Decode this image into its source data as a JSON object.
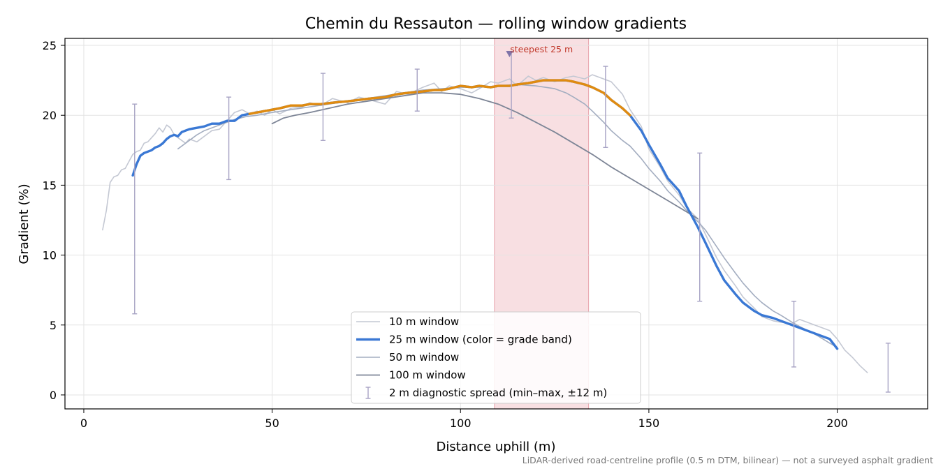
{
  "chart_data": {
    "type": "line",
    "title": "Chemin du Ressauton — rolling window gradients",
    "xlabel": "Distance uphill (m)",
    "ylabel": "Gradient (%)",
    "xlim": [
      -5,
      224
    ],
    "ylim": [
      -1,
      25.5
    ],
    "x_ticks": [
      0,
      50,
      100,
      150,
      200
    ],
    "y_ticks": [
      0,
      5,
      10,
      15,
      20,
      25
    ],
    "grid": true,
    "legend_position": "lower-center",
    "footnote": "LiDAR-derived road-centreline profile (0.5 m DTM, bilinear) — not a surveyed asphalt gradient",
    "highlight": {
      "label": "steepest 25 m",
      "x_start": 109,
      "x_end": 134,
      "marker_x": 113,
      "marker_y": 24.5,
      "color": "#f2c4ca"
    },
    "series": [
      {
        "name": "10 m window",
        "color": "#c4c8d3",
        "x": [
          5,
          6,
          7,
          8,
          9,
          10,
          11,
          12,
          13,
          14,
          15,
          16,
          17,
          18,
          19,
          20,
          21,
          22,
          23,
          24,
          25,
          26,
          27,
          28,
          30,
          32,
          34,
          36,
          38,
          40,
          42,
          44,
          46,
          48,
          50,
          52,
          55,
          58,
          60,
          63,
          66,
          70,
          73,
          76,
          80,
          83,
          86,
          90,
          93,
          95,
          97,
          100,
          103,
          105,
          108,
          110,
          113,
          115,
          118,
          120,
          122,
          125,
          128,
          130,
          133,
          135,
          138,
          140,
          143,
          145,
          148,
          150,
          153,
          155,
          158,
          160,
          163,
          165,
          168,
          170,
          173,
          175,
          178,
          180,
          183,
          185,
          188,
          190,
          192,
          195,
          198,
          200,
          202,
          204,
          206,
          208
        ],
        "y": [
          11.8,
          13.2,
          15.2,
          15.6,
          15.7,
          16.1,
          16.2,
          16.7,
          17.2,
          17.4,
          17.5,
          18.0,
          18.1,
          18.4,
          18.7,
          19.1,
          18.8,
          19.3,
          19.1,
          18.6,
          18.4,
          18.2,
          18.0,
          18.3,
          18.1,
          18.5,
          18.9,
          19.0,
          19.6,
          20.2,
          20.4,
          20.1,
          20.3,
          20.0,
          20.4,
          20.1,
          20.5,
          20.6,
          20.9,
          20.7,
          21.2,
          20.9,
          21.3,
          21.1,
          20.8,
          21.7,
          21.5,
          22.0,
          22.3,
          21.7,
          22.1,
          21.9,
          21.6,
          21.9,
          22.4,
          22.3,
          22.6,
          22.1,
          22.8,
          22.5,
          22.7,
          22.4,
          22.7,
          22.8,
          22.6,
          22.9,
          22.6,
          22.4,
          21.5,
          20.4,
          19.2,
          17.6,
          16.3,
          15.3,
          14.3,
          13.4,
          12.6,
          11.5,
          9.8,
          8.9,
          7.8,
          7.0,
          6.2,
          5.6,
          5.3,
          5.2,
          5.1,
          5.4,
          5.2,
          4.9,
          4.6,
          4.0,
          3.2,
          2.7,
          2.1,
          1.6
        ],
        "width": 1.6
      },
      {
        "name": "25 m window (color = grade band)",
        "color": "#3a78d4",
        "x": [
          13,
          14,
          15,
          16,
          17,
          18,
          19,
          20,
          21,
          22,
          23,
          24,
          25,
          26,
          27,
          28,
          30,
          32,
          34,
          36,
          38,
          40,
          42,
          44,
          46,
          48,
          50,
          52,
          55,
          58,
          60,
          63,
          66,
          70,
          73,
          76,
          80,
          83,
          86,
          90,
          93,
          95,
          97,
          100,
          103,
          105,
          108,
          110,
          113,
          115,
          118,
          120,
          122,
          125,
          128,
          130,
          133,
          135,
          138,
          140,
          143,
          145,
          148,
          150,
          153,
          155,
          158,
          160,
          163,
          165,
          168,
          170,
          173,
          175,
          178,
          180,
          183,
          185,
          188,
          190,
          192,
          195,
          198,
          200
        ],
        "y": [
          15.7,
          16.5,
          17.1,
          17.3,
          17.4,
          17.5,
          17.7,
          17.8,
          18.0,
          18.3,
          18.5,
          18.6,
          18.5,
          18.8,
          18.9,
          19.0,
          19.1,
          19.2,
          19.4,
          19.4,
          19.6,
          19.6,
          20.0,
          20.1,
          20.2,
          20.3,
          20.4,
          20.5,
          20.7,
          20.7,
          20.8,
          20.8,
          20.9,
          21.0,
          21.1,
          21.2,
          21.3,
          21.5,
          21.6,
          21.7,
          21.8,
          21.8,
          21.9,
          22.1,
          22.0,
          22.1,
          22.0,
          22.1,
          22.1,
          22.2,
          22.3,
          22.4,
          22.5,
          22.5,
          22.5,
          22.4,
          22.2,
          22.0,
          21.6,
          21.1,
          20.5,
          20.0,
          18.9,
          17.9,
          16.5,
          15.5,
          14.6,
          13.5,
          12.0,
          10.9,
          9.2,
          8.2,
          7.2,
          6.6,
          6.0,
          5.7,
          5.5,
          5.3,
          5.0,
          4.8,
          4.6,
          4.3,
          4.0,
          3.3
        ],
        "width": 3.4,
        "bands": [
          {
            "x_start": 43,
            "x_end": 145,
            "color": "#e08b10"
          }
        ]
      },
      {
        "name": "50 m window",
        "color": "#a3adc0",
        "x": [
          25,
          28,
          30,
          32,
          35,
          38,
          40,
          43,
          46,
          50,
          55,
          60,
          65,
          70,
          75,
          80,
          85,
          90,
          95,
          100,
          105,
          110,
          115,
          120,
          125,
          128,
          130,
          133,
          135,
          138,
          140,
          143,
          145,
          148,
          150,
          153,
          155,
          158,
          160,
          163,
          165,
          168,
          170,
          173,
          175,
          178,
          180,
          183,
          185,
          188,
          190,
          193,
          195,
          198,
          200
        ],
        "y": [
          17.6,
          18.2,
          18.6,
          18.9,
          19.2,
          19.5,
          19.7,
          19.9,
          20.0,
          20.2,
          20.4,
          20.6,
          20.8,
          21.0,
          21.2,
          21.4,
          21.6,
          21.8,
          21.9,
          22.0,
          22.0,
          22.1,
          22.2,
          22.1,
          21.9,
          21.6,
          21.3,
          20.8,
          20.3,
          19.5,
          18.9,
          18.2,
          17.8,
          16.9,
          16.2,
          15.3,
          14.6,
          13.8,
          13.2,
          12.4,
          11.8,
          10.6,
          9.8,
          8.7,
          8.0,
          7.1,
          6.6,
          6.0,
          5.7,
          5.2,
          4.9,
          4.5,
          4.2,
          3.7,
          3.4
        ],
        "width": 1.6
      },
      {
        "name": "100 m window",
        "color": "#7d8596",
        "x": [
          50,
          53,
          56,
          60,
          65,
          70,
          75,
          80,
          85,
          90,
          95,
          100,
          105,
          110,
          115,
          120,
          125,
          130,
          135,
          140,
          145,
          150,
          155,
          160,
          163
        ],
        "y": [
          19.4,
          19.8,
          20.0,
          20.2,
          20.5,
          20.8,
          21.0,
          21.2,
          21.4,
          21.6,
          21.6,
          21.5,
          21.2,
          20.8,
          20.2,
          19.5,
          18.8,
          18.0,
          17.2,
          16.3,
          15.5,
          14.7,
          13.9,
          13.1,
          12.6
        ],
        "width": 1.8
      }
    ],
    "diagnostic_spread": {
      "name": "2 m diagnostic spread (min–max, ±12 m)",
      "color": "#a7a3c4",
      "points": [
        {
          "x": 13.5,
          "min": 5.8,
          "max": 20.8
        },
        {
          "x": 38.5,
          "min": 15.4,
          "max": 21.3
        },
        {
          "x": 63.5,
          "min": 18.2,
          "max": 23.0
        },
        {
          "x": 88.5,
          "min": 20.3,
          "max": 23.3
        },
        {
          "x": 113.5,
          "min": 19.8,
          "max": 24.5
        },
        {
          "x": 138.5,
          "min": 17.7,
          "max": 23.5
        },
        {
          "x": 163.5,
          "min": 6.7,
          "max": 17.3
        },
        {
          "x": 188.5,
          "min": 2.0,
          "max": 6.7
        },
        {
          "x": 213.5,
          "min": 0.2,
          "max": 3.7
        }
      ]
    }
  }
}
